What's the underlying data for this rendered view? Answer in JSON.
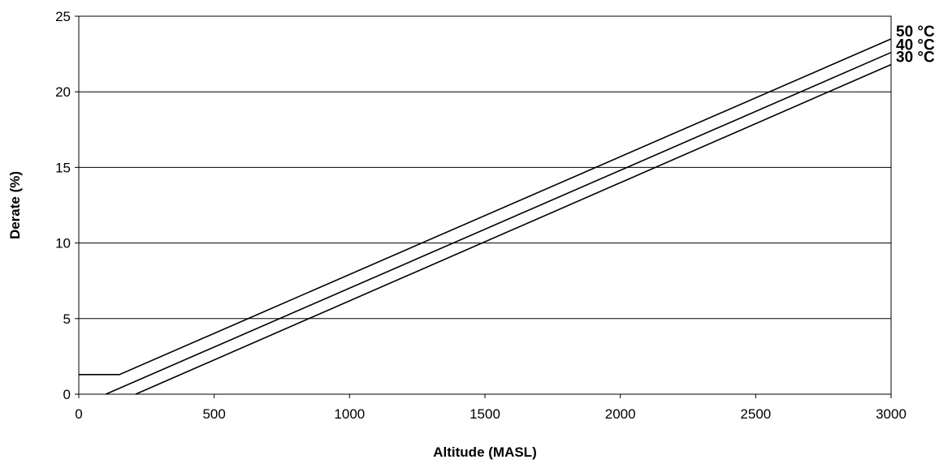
{
  "chart_data": {
    "type": "line",
    "title": "",
    "xlabel": "Altitude (MASL)",
    "ylabel": "Derate (%)",
    "xlim": [
      0,
      3000
    ],
    "ylim": [
      0,
      25
    ],
    "x_ticks": [
      0,
      500,
      1000,
      1500,
      2000,
      2500,
      3000
    ],
    "y_ticks": [
      0,
      5,
      10,
      15,
      20,
      25
    ],
    "grid": "horizontal",
    "legend": "series labels at right end of lines",
    "series": [
      {
        "name": "50 °C",
        "x": [
          0,
          150,
          3000
        ],
        "y": [
          1.3,
          1.3,
          23.5
        ]
      },
      {
        "name": "40 °C",
        "x": [
          100,
          3000
        ],
        "y": [
          0,
          22.6
        ]
      },
      {
        "name": "30 °C",
        "x": [
          210,
          3000
        ],
        "y": [
          0,
          21.8
        ]
      }
    ]
  }
}
